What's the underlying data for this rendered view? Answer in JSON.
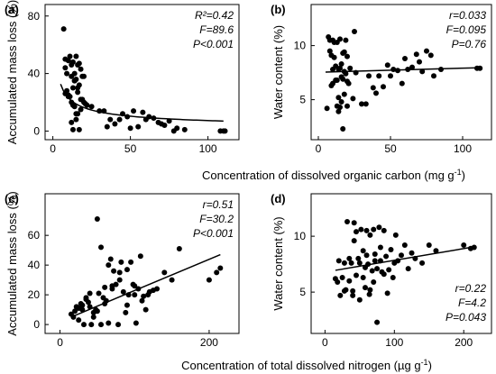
{
  "figure": {
    "xlabel_top": "Concentration of dissolved organic carbon (mg g",
    "xlabel_top_sup": "-1",
    "xlabel_top_end": ")",
    "xlabel_bottom": "Concentration of total dissolved nitrogen (µg g",
    "xlabel_bottom_sup": "-1",
    "xlabel_bottom_end": ")"
  },
  "chart_data": [
    {
      "panel": "(a)",
      "type": "scatter",
      "ylabel": "Accumulated mass loss (%)",
      "xlim": [
        -5,
        120
      ],
      "ylim": [
        -6,
        88
      ],
      "xticks": [
        0,
        50,
        100
      ],
      "yticks": [
        0,
        40,
        80
      ],
      "stats": [
        "R²=0.42",
        "F=89.6",
        "P<0.001"
      ],
      "stats_position": "top-right",
      "fit": {
        "kind": "power",
        "from": 5,
        "to": 110,
        "a": 73,
        "b": -0.5
      },
      "x": [
        7,
        8,
        8,
        9,
        9,
        10,
        10,
        11,
        11,
        12,
        12,
        12,
        13,
        13,
        13,
        14,
        14,
        14,
        15,
        15,
        15,
        16,
        16,
        16,
        17,
        17,
        18,
        18,
        19,
        19,
        20,
        12,
        13,
        15,
        17,
        10,
        8,
        21,
        22,
        18,
        14,
        16,
        20,
        25,
        30,
        33,
        35,
        37,
        40,
        43,
        45,
        48,
        50,
        52,
        55,
        58,
        60,
        62,
        65,
        68,
        70,
        72,
        75,
        78,
        80,
        85,
        108,
        110,
        111
      ],
      "y": [
        71,
        50,
        44,
        40,
        28,
        49,
        25,
        52,
        24,
        46,
        38,
        20,
        30,
        18,
        48,
        40,
        35,
        17,
        52,
        36,
        8,
        27,
        46,
        12,
        32,
        47,
        43,
        15,
        38,
        22,
        38,
        6,
        1,
        12,
        1,
        24,
        26,
        19,
        18,
        22,
        35,
        30,
        20,
        17,
        14,
        14,
        3,
        8,
        5,
        8,
        12,
        10,
        2,
        14,
        3,
        13,
        8,
        10,
        9,
        6,
        5,
        4,
        7,
        0,
        2,
        1,
        0,
        0,
        0
      ]
    },
    {
      "panel": "(b)",
      "type": "scatter",
      "ylabel": "Water content (%)",
      "xlim": [
        -5,
        120
      ],
      "ylim": [
        1.3,
        13.8
      ],
      "xticks": [
        0,
        50,
        100
      ],
      "yticks": [
        5,
        10
      ],
      "stats": [
        "r=0.033",
        "F=0.095",
        "P=0.76"
      ],
      "stats_position": "top-right",
      "fit": {
        "kind": "linear",
        "from": 5,
        "to": 110,
        "y_from": 7.55,
        "y_to": 7.95
      },
      "x": [
        6,
        7,
        8,
        8,
        9,
        10,
        10,
        11,
        11,
        12,
        12,
        13,
        13,
        14,
        14,
        15,
        15,
        15,
        16,
        16,
        17,
        17,
        18,
        18,
        19,
        19,
        20,
        20,
        13,
        16,
        10,
        9,
        22,
        24,
        18,
        14,
        25,
        30,
        33,
        35,
        38,
        40,
        42,
        45,
        48,
        50,
        52,
        55,
        58,
        60,
        62,
        65,
        68,
        70,
        72,
        75,
        78,
        80,
        85,
        110,
        112,
        17,
        21,
        26,
        20
      ],
      "y": [
        4.2,
        10.8,
        10.5,
        9.5,
        9.1,
        10.5,
        6.5,
        10.3,
        8.9,
        6.8,
        8.1,
        6.8,
        10.3,
        7.8,
        5.2,
        10.6,
        7.9,
        4.3,
        8.3,
        7.1,
        9.3,
        6.9,
        7.6,
        5.5,
        10.5,
        7.4,
        6.7,
        4.4,
        4.4,
        4.8,
        7.8,
        6.3,
        7.9,
        5.1,
        9.4,
        3.9,
        11.3,
        4.6,
        4.6,
        7.2,
        6.1,
        5.6,
        7.2,
        6.2,
        8.2,
        7.2,
        7.8,
        7.7,
        6.5,
        8.8,
        7.8,
        8.0,
        9.2,
        8.5,
        7.6,
        9.5,
        9.1,
        7.2,
        7.8,
        7.9,
        7.9,
        2.3,
        6.5,
        7.5,
        9.0
      ]
    },
    {
      "panel": "(c)",
      "type": "scatter",
      "ylabel": "Accumulated mass loss (%)",
      "xlim": [
        -20,
        240
      ],
      "ylim": [
        -6,
        88
      ],
      "xticks": [
        0,
        200
      ],
      "yticks": [
        0,
        20,
        40,
        60
      ],
      "stats": [
        "r=0.51",
        "F=30.2",
        "P<0.001"
      ],
      "stats_position": "top-right",
      "fit": {
        "kind": "linear",
        "from": 15,
        "to": 215,
        "y_from": 5,
        "y_to": 47
      },
      "x": [
        15,
        18,
        20,
        22,
        25,
        28,
        30,
        32,
        35,
        38,
        40,
        42,
        45,
        48,
        50,
        52,
        55,
        58,
        60,
        62,
        65,
        68,
        70,
        72,
        75,
        78,
        80,
        82,
        85,
        88,
        90,
        92,
        95,
        98,
        100,
        102,
        105,
        108,
        110,
        112,
        115,
        118,
        120,
        125,
        130,
        140,
        150,
        160,
        200,
        210,
        215,
        45,
        50,
        55,
        60,
        65,
        70,
        80,
        90,
        100,
        40,
        35,
        30,
        25
      ],
      "y": [
        7,
        5,
        9,
        12,
        3,
        14,
        10,
        0,
        18,
        15,
        12,
        0,
        8,
        10,
        71,
        21,
        52,
        18,
        25,
        16,
        1,
        44,
        24,
        36,
        27,
        0,
        30,
        42,
        22,
        8,
        37,
        20,
        42,
        27,
        26,
        1,
        24,
        46,
        16,
        19,
        10,
        20,
        22,
        23,
        24,
        35,
        30,
        51,
        30,
        35,
        38,
        5,
        9,
        0,
        14,
        40,
        26,
        35,
        13,
        20,
        21,
        17,
        13,
        11
      ]
    },
    {
      "panel": "(d)",
      "type": "scatter",
      "ylabel": "Water content (%)",
      "xlim": [
        -20,
        240
      ],
      "ylim": [
        1.3,
        13.8
      ],
      "xticks": [
        0,
        100,
        200
      ],
      "yticks": [
        5,
        10
      ],
      "stats": [
        "r=0.22",
        "F=4.2",
        "P=0.043"
      ],
      "stats_position": "bottom-right",
      "fit": {
        "kind": "linear",
        "from": 15,
        "to": 215,
        "y_from": 6.95,
        "y_to": 9.05
      },
      "x": [
        15,
        18,
        20,
        22,
        25,
        28,
        30,
        32,
        35,
        38,
        40,
        42,
        45,
        48,
        50,
        52,
        55,
        58,
        60,
        62,
        65,
        68,
        70,
        72,
        75,
        78,
        80,
        82,
        85,
        88,
        90,
        92,
        95,
        98,
        100,
        102,
        105,
        110,
        115,
        120,
        125,
        130,
        140,
        150,
        160,
        200,
        210,
        215,
        40,
        45,
        50,
        55,
        60,
        65,
        70,
        75,
        80,
        85,
        28,
        35,
        42,
        58,
        64,
        72
      ],
      "y": [
        6.2,
        5.9,
        7.8,
        4.7,
        6.3,
        7.6,
        5.2,
        11.3,
        8.0,
        7.6,
        4.7,
        11.2,
        10.4,
        8.0,
        7.6,
        10.6,
        8.7,
        5.4,
        10.5,
        7.5,
        10.1,
        6.9,
        5.9,
        8.4,
        2.3,
        10.8,
        9.0,
        6.8,
        10.5,
        8.2,
        4.9,
        7.0,
        8.8,
        6.3,
        7.6,
        10.1,
        7.8,
        8.3,
        9.2,
        7.1,
        8.5,
        8.0,
        7.6,
        9.2,
        8.7,
        9.2,
        8.9,
        9.0,
        5.1,
        6.5,
        4.3,
        6.3,
        8.3,
        5.2,
        10.6,
        7.1,
        7.8,
        6.6,
        5.1,
        6.0,
        9.6,
        7.2,
        4.8,
        7.8
      ]
    }
  ]
}
